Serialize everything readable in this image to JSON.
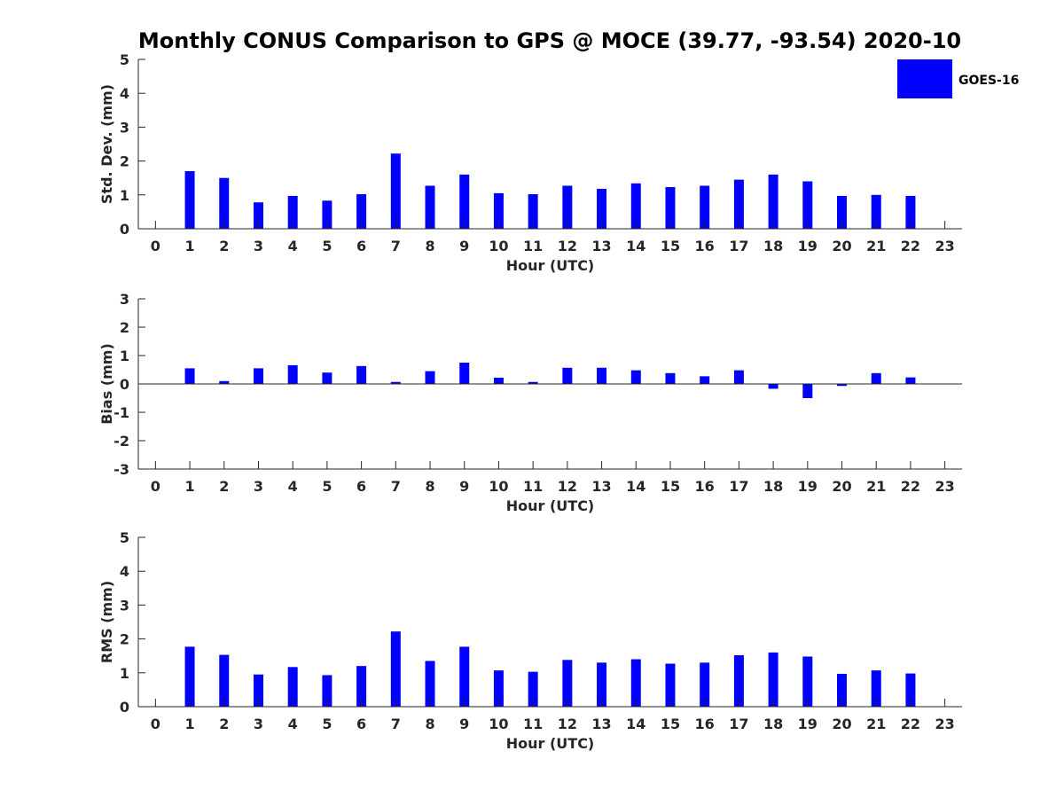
{
  "title": "Monthly CONUS Comparison to GPS @ MOCE (39.77, -93.54) 2020-10",
  "legend": {
    "label": "GOES-16",
    "color": "#0000ff"
  },
  "chart_data": [
    {
      "type": "bar",
      "panel": "std-dev",
      "xlabel": "Hour (UTC)",
      "ylabel": "Std. Dev. (mm)",
      "xlim": [
        -0.5,
        23.5
      ],
      "ylim": [
        0,
        5
      ],
      "categories": [
        0,
        1,
        2,
        3,
        4,
        5,
        6,
        7,
        8,
        9,
        10,
        11,
        12,
        13,
        14,
        15,
        16,
        17,
        18,
        19,
        20,
        21,
        22,
        23
      ],
      "yticks": [
        0,
        1,
        2,
        3,
        4,
        5
      ],
      "series": [
        {
          "name": "GOES-16",
          "color": "#0000ff",
          "values": [
            null,
            1.7,
            1.5,
            0.78,
            0.97,
            0.83,
            1.02,
            2.22,
            1.27,
            1.6,
            1.05,
            1.02,
            1.27,
            1.18,
            1.34,
            1.23,
            1.27,
            1.45,
            1.6,
            1.4,
            0.97,
            1.0,
            0.97,
            null
          ]
        }
      ]
    },
    {
      "type": "bar",
      "panel": "bias",
      "xlabel": "Hour (UTC)",
      "ylabel": "Bias (mm)",
      "xlim": [
        -0.5,
        23.5
      ],
      "ylim": [
        -3,
        3
      ],
      "categories": [
        0,
        1,
        2,
        3,
        4,
        5,
        6,
        7,
        8,
        9,
        10,
        11,
        12,
        13,
        14,
        15,
        16,
        17,
        18,
        19,
        20,
        21,
        22,
        23
      ],
      "yticks": [
        -3,
        -2,
        -1,
        0,
        1,
        2,
        3
      ],
      "zero_line": true,
      "series": [
        {
          "name": "GOES-16",
          "color": "#0000ff",
          "values": [
            null,
            0.55,
            0.1,
            0.55,
            0.66,
            0.4,
            0.63,
            0.07,
            0.45,
            0.75,
            0.22,
            0.07,
            0.57,
            0.57,
            0.48,
            0.38,
            0.27,
            0.48,
            -0.17,
            -0.5,
            -0.07,
            0.38,
            0.23,
            null
          ]
        }
      ]
    },
    {
      "type": "bar",
      "panel": "rms",
      "xlabel": "Hour (UTC)",
      "ylabel": "RMS (mm)",
      "xlim": [
        -0.5,
        23.5
      ],
      "ylim": [
        0,
        5
      ],
      "categories": [
        0,
        1,
        2,
        3,
        4,
        5,
        6,
        7,
        8,
        9,
        10,
        11,
        12,
        13,
        14,
        15,
        16,
        17,
        18,
        19,
        20,
        21,
        22,
        23
      ],
      "yticks": [
        0,
        1,
        2,
        3,
        4,
        5
      ],
      "series": [
        {
          "name": "GOES-16",
          "color": "#0000ff",
          "values": [
            null,
            1.77,
            1.53,
            0.95,
            1.17,
            0.93,
            1.2,
            2.22,
            1.35,
            1.77,
            1.07,
            1.03,
            1.38,
            1.3,
            1.4,
            1.27,
            1.3,
            1.52,
            1.6,
            1.48,
            0.97,
            1.07,
            0.98,
            null
          ]
        }
      ]
    }
  ]
}
